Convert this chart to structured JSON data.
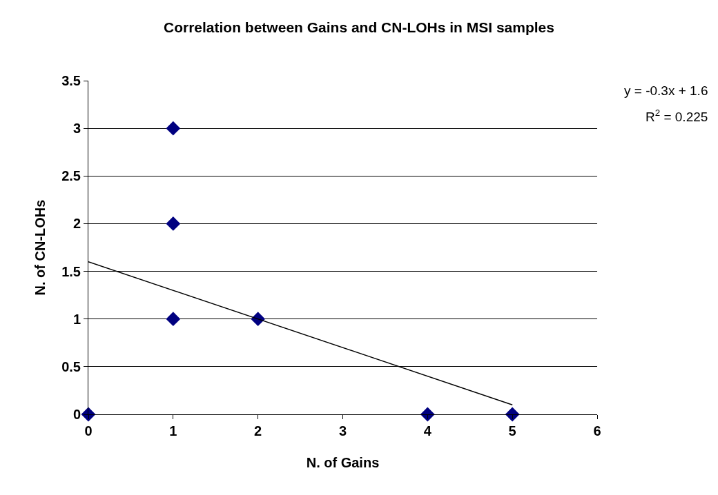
{
  "chart_data": {
    "type": "scatter",
    "title": "Correlation between Gains and CN-LOHs in MSI samples",
    "xlabel": "N. of Gains",
    "ylabel": "N. of CN-LOHs",
    "series": [
      {
        "color": "#000080",
        "marker": "diamond",
        "x": [
          0,
          1,
          1,
          1,
          2,
          4,
          5
        ],
        "values": [
          0,
          3,
          2,
          1,
          1,
          0,
          0
        ]
      },
      {
        "type": "line",
        "color": "#000000",
        "marker": "none",
        "line_style": "solid",
        "x": [
          0,
          5
        ],
        "values": [
          1.6,
          0.1
        ]
      }
    ],
    "xlim": [
      0,
      6
    ],
    "xticks": [
      0,
      1,
      2,
      3,
      4,
      5,
      6
    ],
    "ylim": [
      0,
      3.5
    ],
    "yticks": [
      0,
      0.5,
      1,
      1.5,
      2,
      2.5,
      3,
      3.5
    ],
    "grid": "y",
    "legend": false,
    "annotations": [
      "y = -0.3x + 1.6",
      "R$^{2}$ = 0.225"
    ]
  }
}
